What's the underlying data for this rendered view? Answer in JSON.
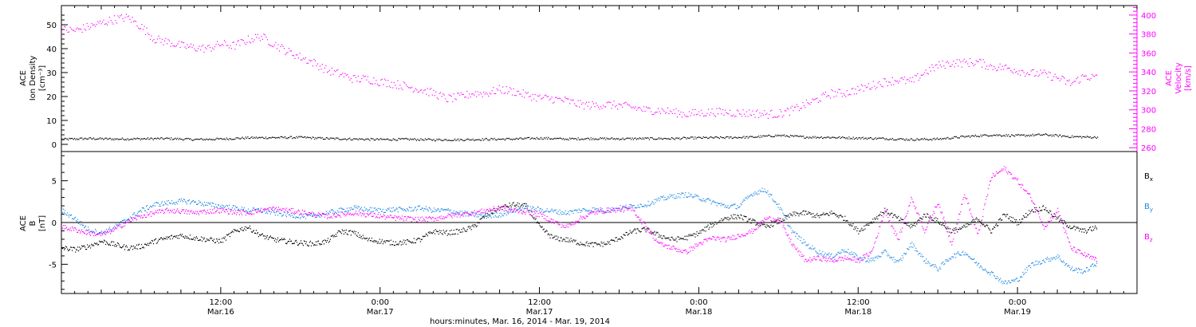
{
  "chart_data": [
    {
      "type": "scatter",
      "panel": "top",
      "ylabel_lines": [
        "ACE",
        "Ion Density",
        "[cm⁻³]"
      ],
      "y2label_lines": [
        "ACE",
        "Velocity",
        "[km/s]"
      ],
      "ylim": [
        -3,
        58
      ],
      "y2lim": [
        256,
        410
      ],
      "yticks": [
        0,
        10,
        20,
        30,
        40,
        50
      ],
      "y2ticks": [
        260,
        280,
        300,
        320,
        340,
        360,
        380,
        400
      ],
      "x_range_hours": [
        0,
        81
      ],
      "series": [
        {
          "name": "Velocity",
          "color": "#ff00ff",
          "axis": "right",
          "x_hours": [
            0,
            1,
            2,
            3,
            4,
            5,
            6,
            7,
            8,
            9,
            10,
            11,
            12,
            13,
            14,
            15,
            16,
            17,
            18,
            19,
            20,
            21,
            22,
            23,
            24,
            25,
            26,
            27,
            28,
            29,
            30,
            31,
            32,
            33,
            34,
            35,
            36,
            37,
            38,
            39,
            40,
            41,
            42,
            43,
            44,
            45,
            46,
            47,
            48,
            49,
            50,
            51,
            52,
            53,
            54,
            55,
            56,
            57,
            58,
            59,
            60,
            61,
            62,
            63,
            64,
            65,
            66,
            67,
            68,
            69,
            70,
            71,
            72,
            73,
            74,
            75,
            76,
            77,
            78
          ],
          "values": [
            385,
            384,
            388,
            392,
            396,
            398,
            388,
            375,
            372,
            368,
            366,
            365,
            370,
            368,
            374,
            378,
            370,
            362,
            356,
            350,
            342,
            338,
            333,
            333,
            330,
            328,
            325,
            322,
            318,
            312,
            314,
            318,
            318,
            322,
            320,
            316,
            313,
            312,
            310,
            306,
            305,
            306,
            305,
            303,
            300,
            300,
            298,
            296,
            297,
            298,
            298,
            297,
            297,
            296,
            296,
            300,
            306,
            312,
            318,
            318,
            322,
            326,
            330,
            332,
            330,
            340,
            347,
            350,
            350,
            351,
            346,
            345,
            342,
            339,
            338,
            334,
            328,
            336,
            334
          ]
        },
        {
          "name": "Ion Density",
          "color": "#000000",
          "axis": "left",
          "x_hours": [
            0,
            2,
            4,
            6,
            8,
            10,
            12,
            14,
            16,
            18,
            20,
            22,
            24,
            26,
            28,
            30,
            32,
            34,
            36,
            38,
            40,
            42,
            44,
            46,
            48,
            50,
            52,
            54,
            56,
            58,
            60,
            62,
            64,
            66,
            68,
            70,
            72,
            74,
            76,
            78
          ],
          "values": [
            2.3,
            2.6,
            2.4,
            2.5,
            2.6,
            2.2,
            2.4,
            2.9,
            3.0,
            3.1,
            2.6,
            2.4,
            2.2,
            2.3,
            2.1,
            2.1,
            2.3,
            2.4,
            2.8,
            2.4,
            2.6,
            2.5,
            2.6,
            2.6,
            2.9,
            3.0,
            3.2,
            3.9,
            3.2,
            3.1,
            2.8,
            2.6,
            2.2,
            2.4,
            3.4,
            4.1,
            3.8,
            4.2,
            3.4,
            3.1
          ]
        }
      ]
    },
    {
      "type": "scatter",
      "panel": "bottom",
      "ylabel_lines": [
        "ACE",
        "B",
        "[nT]"
      ],
      "ylim": [
        -8.5,
        8.5
      ],
      "yticks": [
        -5,
        0,
        5
      ],
      "zero_line": true,
      "x_range_hours": [
        0,
        81
      ],
      "x_ticks": [
        {
          "hours": 12,
          "time": "12:00",
          "date": "Mar.16"
        },
        {
          "hours": 24,
          "time": "0:00",
          "date": "Mar.17"
        },
        {
          "hours": 36,
          "time": "12:00",
          "date": "Mar.17"
        },
        {
          "hours": 48,
          "time": "0:00",
          "date": "Mar.18"
        },
        {
          "hours": 60,
          "time": "12:00",
          "date": "Mar.18"
        },
        {
          "hours": 72,
          "time": "0:00",
          "date": "Mar.19"
        }
      ],
      "xlabel": "hours:minutes, Mar. 16, 2014 - Mar. 19, 2014",
      "legend": [
        {
          "text": "B",
          "sub": "x",
          "color": "#000000"
        },
        {
          "text": "B",
          "sub": "y",
          "color": "#1e88e5"
        },
        {
          "text": "B",
          "sub": "z",
          "color": "#ff00ff"
        }
      ],
      "series": [
        {
          "name": "Bx",
          "color": "#000000",
          "x_hours": [
            0,
            1,
            2,
            3,
            4,
            5,
            6,
            7,
            8,
            9,
            10,
            11,
            12,
            13,
            14,
            15,
            16,
            17,
            18,
            19,
            20,
            21,
            22,
            23,
            24,
            25,
            26,
            27,
            28,
            29,
            30,
            31,
            32,
            33,
            34,
            35,
            36,
            37,
            38,
            39,
            40,
            41,
            42,
            43,
            44,
            45,
            46,
            47,
            48,
            49,
            50,
            51,
            52,
            53,
            54,
            55,
            56,
            57,
            58,
            59,
            60,
            61,
            62,
            63,
            64,
            65,
            66,
            67,
            68,
            69,
            70,
            71,
            72,
            73,
            74,
            75,
            76,
            77,
            78
          ],
          "values": [
            -3.0,
            -3.2,
            -2.8,
            -2.2,
            -2.6,
            -3.0,
            -2.8,
            -2.2,
            -1.8,
            -1.5,
            -1.8,
            -2.0,
            -2.2,
            -1.0,
            -0.5,
            -1.5,
            -2.0,
            -2.2,
            -2.4,
            -2.5,
            -2.2,
            -1.0,
            -1.2,
            -2.0,
            -2.2,
            -2.4,
            -2.3,
            -2.0,
            -1.0,
            -1.2,
            -1.0,
            -0.5,
            1.0,
            1.8,
            2.2,
            2.0,
            -0.5,
            -1.8,
            -2.0,
            -2.4,
            -2.6,
            -2.5,
            -1.8,
            -1.0,
            -0.8,
            -1.5,
            -2.0,
            -1.8,
            -1.2,
            -0.2,
            0.6,
            0.8,
            0.2,
            -0.5,
            0.2,
            1.0,
            1.2,
            0.8,
            1.2,
            0.5,
            -1.0,
            0.2,
            1.5,
            0.5,
            -0.5,
            1.0,
            0.2,
            -1.0,
            -0.5,
            0.5,
            -1.0,
            1.0,
            0.0,
            1.5,
            1.8,
            0.5,
            -0.5,
            -1.0,
            -0.5
          ]
        },
        {
          "name": "By",
          "color": "#1e88e5",
          "x_hours": [
            0,
            1,
            2,
            3,
            4,
            5,
            6,
            7,
            8,
            9,
            10,
            11,
            12,
            13,
            14,
            15,
            16,
            17,
            18,
            19,
            20,
            21,
            22,
            23,
            24,
            25,
            26,
            27,
            28,
            29,
            30,
            31,
            32,
            33,
            34,
            35,
            36,
            37,
            38,
            39,
            40,
            41,
            42,
            43,
            44,
            45,
            46,
            47,
            48,
            49,
            50,
            51,
            52,
            53,
            54,
            55,
            56,
            57,
            58,
            59,
            60,
            61,
            62,
            63,
            64,
            65,
            66,
            67,
            68,
            69,
            70,
            71,
            72,
            73,
            74,
            75,
            76,
            77,
            78
          ],
          "values": [
            1.5,
            0.5,
            -0.8,
            -1.2,
            -0.5,
            0.5,
            1.5,
            2.2,
            2.4,
            2.6,
            2.5,
            2.2,
            2.0,
            1.8,
            1.5,
            1.5,
            1.2,
            1.0,
            0.8,
            0.8,
            1.2,
            1.5,
            1.8,
            1.6,
            1.5,
            1.6,
            1.6,
            1.8,
            1.5,
            1.5,
            1.2,
            1.0,
            0.8,
            1.0,
            1.5,
            1.8,
            1.6,
            1.4,
            1.2,
            1.5,
            1.6,
            1.5,
            1.8,
            2.0,
            2.2,
            2.8,
            3.2,
            3.4,
            3.0,
            2.5,
            2.0,
            2.0,
            3.5,
            4.0,
            2.0,
            -1.0,
            -2.5,
            -3.5,
            -4.0,
            -3.2,
            -4.2,
            -4.5,
            -3.5,
            -4.8,
            -2.5,
            -4.5,
            -5.5,
            -4.0,
            -3.5,
            -5.0,
            -6.0,
            -7.2,
            -6.8,
            -5.0,
            -4.5,
            -4.0,
            -5.5,
            -5.8,
            -4.8
          ]
        },
        {
          "name": "Bz",
          "color": "#ff00ff",
          "x_hours": [
            0,
            1,
            2,
            3,
            4,
            5,
            6,
            7,
            8,
            9,
            10,
            11,
            12,
            13,
            14,
            15,
            16,
            17,
            18,
            19,
            20,
            21,
            22,
            23,
            24,
            25,
            26,
            27,
            28,
            29,
            30,
            31,
            32,
            33,
            34,
            35,
            36,
            37,
            38,
            39,
            40,
            41,
            42,
            43,
            44,
            45,
            46,
            47,
            48,
            49,
            50,
            51,
            52,
            53,
            54,
            55,
            56,
            57,
            58,
            59,
            60,
            61,
            62,
            63,
            64,
            65,
            66,
            67,
            68,
            69,
            70,
            71,
            72,
            73,
            74,
            75,
            76,
            77,
            78
          ],
          "values": [
            -0.5,
            -0.8,
            -1.2,
            -1.4,
            -0.8,
            0.2,
            0.8,
            1.2,
            1.5,
            1.4,
            1.2,
            1.4,
            1.5,
            1.3,
            1.2,
            1.5,
            1.7,
            1.5,
            1.3,
            1.0,
            0.8,
            1.0,
            1.2,
            1.0,
            0.8,
            0.6,
            0.5,
            0.4,
            0.5,
            0.8,
            1.0,
            1.2,
            1.5,
            1.8,
            1.5,
            1.3,
            1.0,
            0.2,
            -0.5,
            0.5,
            1.2,
            1.5,
            1.6,
            1.6,
            -0.5,
            -2.5,
            -3.0,
            -3.5,
            -2.5,
            -1.8,
            -2.0,
            -1.5,
            -1.0,
            0.5,
            0.5,
            -2.5,
            -4.5,
            -4.2,
            -4.5,
            -4.2,
            -4.5,
            -3.5,
            1.5,
            -2.0,
            3.0,
            -1.0,
            2.5,
            -2.5,
            3.5,
            -1.5,
            5.5,
            6.5,
            5.0,
            3.0,
            -0.5,
            1.5,
            -3.0,
            -3.8,
            -4.5
          ]
        }
      ]
    }
  ]
}
